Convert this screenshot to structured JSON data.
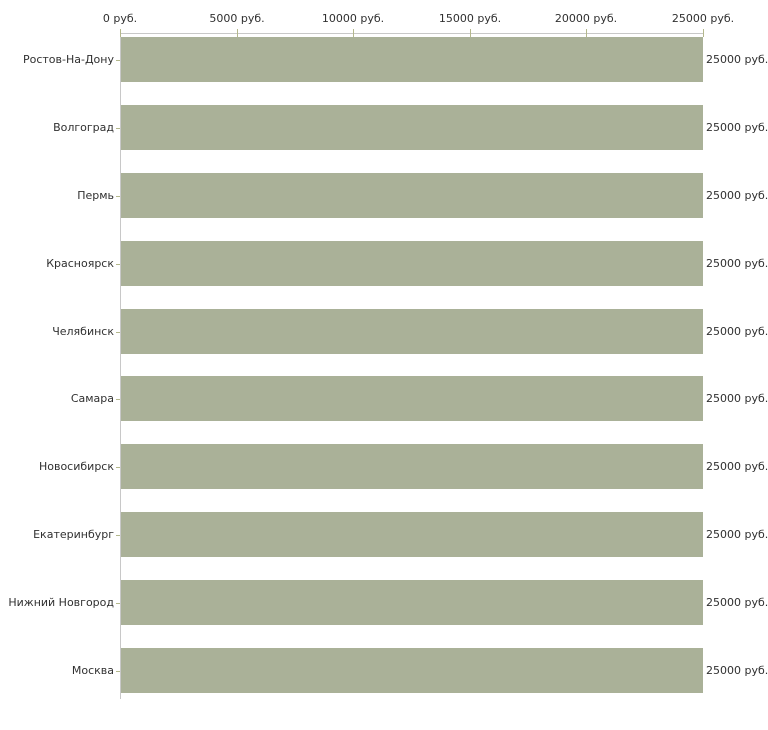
{
  "chart_data": {
    "type": "bar",
    "orientation": "horizontal",
    "title": "",
    "xlabel": "",
    "ylabel": "",
    "xlim": [
      0,
      25000
    ],
    "grid": false,
    "legend": null,
    "x_ticks": [
      {
        "value": 0,
        "label": "0 руб."
      },
      {
        "value": 5000,
        "label": "5000 руб."
      },
      {
        "value": 10000,
        "label": "10000 руб."
      },
      {
        "value": 15000,
        "label": "15000 руб."
      },
      {
        "value": 20000,
        "label": "20000 руб."
      },
      {
        "value": 25000,
        "label": "25000 руб."
      }
    ],
    "rows": [
      {
        "category": "Ростов-На-Дону",
        "value": 25000,
        "value_label": "25000 руб."
      },
      {
        "category": "Волгоград",
        "value": 25000,
        "value_label": "25000 руб."
      },
      {
        "category": "Пермь",
        "value": 25000,
        "value_label": "25000 руб."
      },
      {
        "category": "Красноярск",
        "value": 25000,
        "value_label": "25000 руб."
      },
      {
        "category": "Челябинск",
        "value": 25000,
        "value_label": "25000 руб."
      },
      {
        "category": "Самара",
        "value": 25000,
        "value_label": "25000 руб."
      },
      {
        "category": "Новосибирск",
        "value": 25000,
        "value_label": "25000 руб."
      },
      {
        "category": "Екатеринбург",
        "value": 25000,
        "value_label": "25000 руб."
      },
      {
        "category": "Нижний Новгород",
        "value": 25000,
        "value_label": "25000 руб."
      },
      {
        "category": "Москва",
        "value": 25000,
        "value_label": "25000 руб."
      }
    ],
    "colors": {
      "bar": "#aab198",
      "axis_line": "#c8c8c8",
      "tick": "#b4b88c",
      "text": "#303030",
      "background": "#ffffff"
    }
  }
}
